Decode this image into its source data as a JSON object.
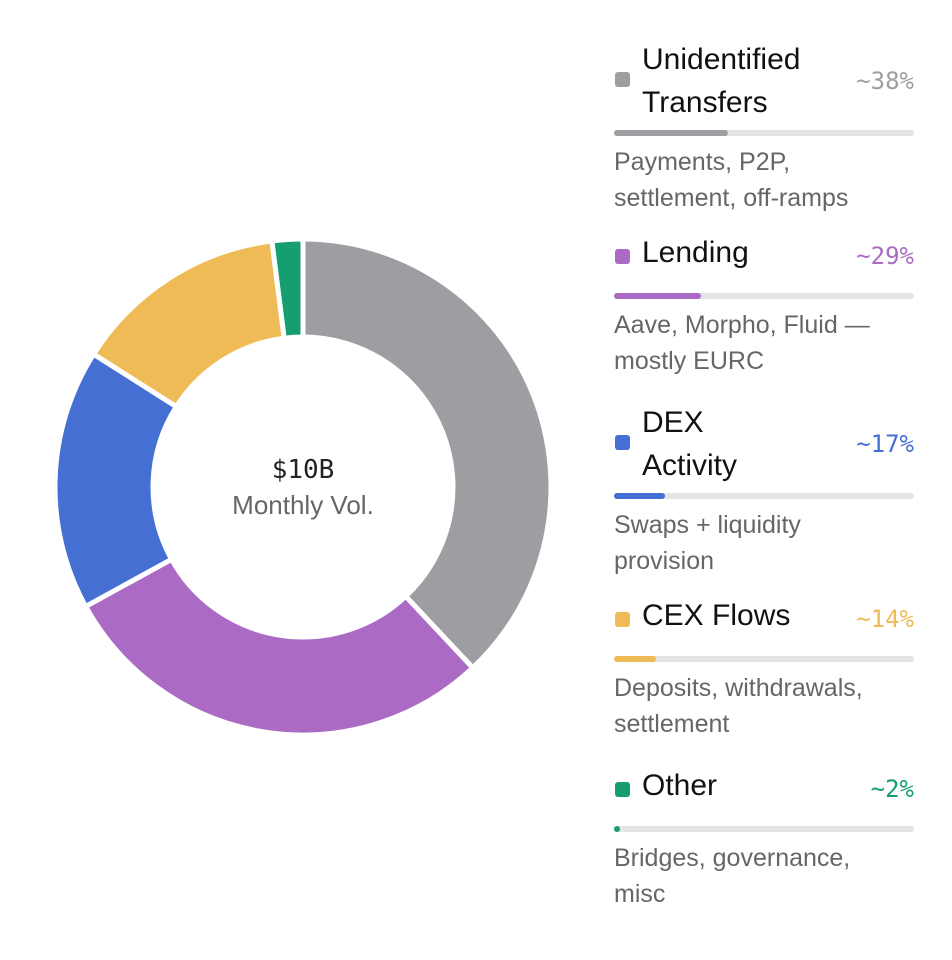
{
  "chart_data": {
    "type": "pie",
    "center": {
      "value": "$10B",
      "label": "Monthly Vol."
    },
    "categories": [
      "Unidentified Transfers",
      "Lending",
      "DEX Activity",
      "CEX Flows",
      "Other"
    ],
    "values": [
      38,
      29,
      17,
      14,
      2
    ],
    "series": [
      {
        "name": "Unidentified Transfers",
        "label_lines": [
          "Unidentified",
          "Transfers"
        ],
        "value": 38,
        "pct_label": "~38%",
        "color": "#9e9ea2",
        "pct_color": "#9e9ea2",
        "description": [
          "Payments, P2P,",
          "settlement, off-ramps"
        ]
      },
      {
        "name": "Lending",
        "label_lines": [
          "Lending"
        ],
        "value": 29,
        "pct_label": "~29%",
        "color": "#ab6bc4",
        "pct_color": "#ab6bc4",
        "description": [
          "Aave, Morpho, Fluid —",
          "mostly EURC"
        ]
      },
      {
        "name": "DEX Activity",
        "label_lines": [
          "DEX",
          "Activity"
        ],
        "value": 17,
        "pct_label": "~17%",
        "color": "#456fd2",
        "pct_color": "#456fd2",
        "description": [
          "Swaps + liquidity",
          "provision"
        ]
      },
      {
        "name": "CEX Flows",
        "label_lines": [
          "CEX Flows"
        ],
        "value": 14,
        "pct_label": "~14%",
        "color": "#efbb56",
        "pct_color": "#efbb56",
        "description": [
          "Deposits, withdrawals,",
          "settlement"
        ]
      },
      {
        "name": "Other",
        "label_lines": [
          "Other"
        ],
        "value": 2,
        "pct_label": "~2%",
        "color": "#159e6f",
        "pct_color": "#159e6f",
        "description": [
          "Bridges, governance,",
          "misc"
        ]
      }
    ],
    "legend_position": "right",
    "bar_track_color": "#e4e4e4"
  }
}
